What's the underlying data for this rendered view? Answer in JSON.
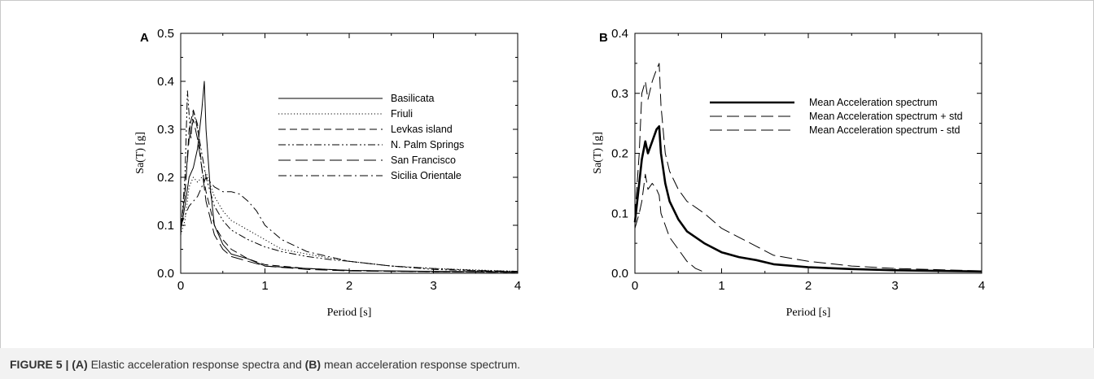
{
  "caption": {
    "label": "FIGURE 5 | ",
    "part_a_tag": "(A)",
    "part_a_text": " Elastic acceleration response spectra and ",
    "part_b_tag": "(B)",
    "part_b_text": " mean acceleration response spectrum."
  },
  "colors": {
    "line": "#000000",
    "frame": "#bbbbbb",
    "caption_bg": "#f2f2f2",
    "caption_text": "#333333"
  },
  "chart_data": [
    {
      "panel": "A",
      "type": "line",
      "xlabel": "Period [s]",
      "ylabel": "Sa(T) [g]",
      "xlim": [
        0,
        4
      ],
      "ylim": [
        0,
        0.5
      ],
      "xticks": [
        "0",
        "1",
        "2",
        "3",
        "4"
      ],
      "yticks": [
        "0.0",
        "0.1",
        "0.2",
        "0.3",
        "0.4",
        "0.5"
      ],
      "grid": false,
      "legend_position": "top-right",
      "series": [
        {
          "name": "Basilicata",
          "dash": "solid",
          "x": [
            0,
            0.05,
            0.1,
            0.15,
            0.2,
            0.25,
            0.28,
            0.3,
            0.35,
            0.4,
            0.5,
            0.6,
            0.8,
            1.0,
            1.5,
            2.0,
            3.0,
            4.0
          ],
          "y": [
            0.09,
            0.14,
            0.2,
            0.22,
            0.26,
            0.34,
            0.4,
            0.3,
            0.18,
            0.1,
            0.06,
            0.04,
            0.03,
            0.015,
            0.01,
            0.006,
            0.004,
            0.003
          ]
        },
        {
          "name": "Friuli",
          "dash": "dotted",
          "x": [
            0,
            0.05,
            0.1,
            0.15,
            0.2,
            0.3,
            0.4,
            0.5,
            0.6,
            0.7,
            0.8,
            1.0,
            1.2,
            1.5,
            2.0,
            2.5,
            3.0,
            4.0
          ],
          "y": [
            0.08,
            0.11,
            0.18,
            0.2,
            0.19,
            0.21,
            0.16,
            0.13,
            0.11,
            0.1,
            0.09,
            0.07,
            0.05,
            0.04,
            0.025,
            0.015,
            0.01,
            0.004
          ]
        },
        {
          "name": "Levkas island",
          "dash": "dash",
          "x": [
            0,
            0.05,
            0.1,
            0.15,
            0.2,
            0.25,
            0.3,
            0.4,
            0.5,
            0.6,
            0.8,
            1.0,
            1.5,
            2.0,
            3.0,
            4.0
          ],
          "y": [
            0.1,
            0.16,
            0.3,
            0.34,
            0.31,
            0.22,
            0.17,
            0.1,
            0.07,
            0.05,
            0.03,
            0.018,
            0.01,
            0.006,
            0.003,
            0.002
          ]
        },
        {
          "name": "N. Palm Springs",
          "dash": "dashdotdot",
          "x": [
            0,
            0.05,
            0.08,
            0.12,
            0.15,
            0.2,
            0.25,
            0.3,
            0.4,
            0.5,
            0.6,
            0.8,
            1.0,
            1.2,
            1.5,
            1.8,
            2.0,
            2.5,
            3.0,
            4.0
          ],
          "y": [
            0.08,
            0.2,
            0.38,
            0.28,
            0.34,
            0.3,
            0.25,
            0.2,
            0.14,
            0.11,
            0.09,
            0.07,
            0.055,
            0.045,
            0.035,
            0.028,
            0.025,
            0.015,
            0.008,
            0.003
          ]
        },
        {
          "name": "San Francisco",
          "dash": "longdash",
          "x": [
            0,
            0.05,
            0.1,
            0.15,
            0.2,
            0.25,
            0.3,
            0.4,
            0.5,
            0.6,
            0.8,
            1.0,
            1.5,
            2.0,
            3.0,
            4.0
          ],
          "y": [
            0.09,
            0.17,
            0.28,
            0.32,
            0.28,
            0.22,
            0.15,
            0.08,
            0.05,
            0.035,
            0.025,
            0.015,
            0.008,
            0.005,
            0.003,
            0.002
          ]
        },
        {
          "name": "Sicilia Orientale",
          "dash": "dashdot",
          "x": [
            0,
            0.05,
            0.1,
            0.15,
            0.2,
            0.3,
            0.4,
            0.5,
            0.6,
            0.7,
            0.8,
            0.9,
            1.0,
            1.2,
            1.5,
            2.0,
            2.5,
            3.0,
            3.5,
            4.0
          ],
          "y": [
            0.1,
            0.12,
            0.14,
            0.15,
            0.16,
            0.2,
            0.18,
            0.17,
            0.17,
            0.165,
            0.15,
            0.13,
            0.1,
            0.07,
            0.045,
            0.025,
            0.015,
            0.01,
            0.006,
            0.004
          ]
        }
      ]
    },
    {
      "panel": "B",
      "type": "line",
      "xlabel": "Period [s]",
      "ylabel": "Sa(T) [g]",
      "xlim": [
        0,
        4
      ],
      "ylim": [
        0,
        0.4
      ],
      "xticks": [
        "0",
        "1",
        "2",
        "3",
        "4"
      ],
      "yticks": [
        "0.0",
        "0.1",
        "0.2",
        "0.3",
        "0.4"
      ],
      "grid": false,
      "legend_position": "top-right",
      "series": [
        {
          "name": "Mean Acceleration spectrum",
          "dash": "thick",
          "x": [
            0,
            0.05,
            0.08,
            0.12,
            0.15,
            0.2,
            0.25,
            0.28,
            0.3,
            0.35,
            0.4,
            0.5,
            0.6,
            0.8,
            1.0,
            1.2,
            1.4,
            1.6,
            2.0,
            2.5,
            3.0,
            4.0
          ],
          "y": [
            0.085,
            0.15,
            0.19,
            0.22,
            0.2,
            0.22,
            0.24,
            0.245,
            0.2,
            0.15,
            0.12,
            0.09,
            0.07,
            0.05,
            0.035,
            0.027,
            0.022,
            0.015,
            0.01,
            0.007,
            0.005,
            0.003
          ]
        },
        {
          "name": "Mean Acceleration spectrum + std",
          "dash": "longdash",
          "x": [
            0,
            0.05,
            0.08,
            0.12,
            0.15,
            0.2,
            0.25,
            0.28,
            0.3,
            0.35,
            0.4,
            0.5,
            0.6,
            0.8,
            1.0,
            1.2,
            1.4,
            1.6,
            2.0,
            2.5,
            3.0,
            4.0
          ],
          "y": [
            0.095,
            0.2,
            0.3,
            0.32,
            0.29,
            0.32,
            0.34,
            0.35,
            0.28,
            0.2,
            0.17,
            0.14,
            0.12,
            0.1,
            0.075,
            0.06,
            0.045,
            0.03,
            0.02,
            0.012,
            0.008,
            0.004
          ]
        },
        {
          "name": "Mean Acceleration spectrum - std",
          "dash": "longdash",
          "x": [
            0,
            0.05,
            0.08,
            0.12,
            0.15,
            0.2,
            0.25,
            0.28,
            0.3,
            0.35,
            0.4,
            0.5,
            0.6,
            0.7,
            0.8
          ],
          "y": [
            0.075,
            0.1,
            0.12,
            0.165,
            0.14,
            0.15,
            0.14,
            0.13,
            0.1,
            0.08,
            0.06,
            0.04,
            0.02,
            0.008,
            0.002
          ]
        }
      ]
    }
  ]
}
